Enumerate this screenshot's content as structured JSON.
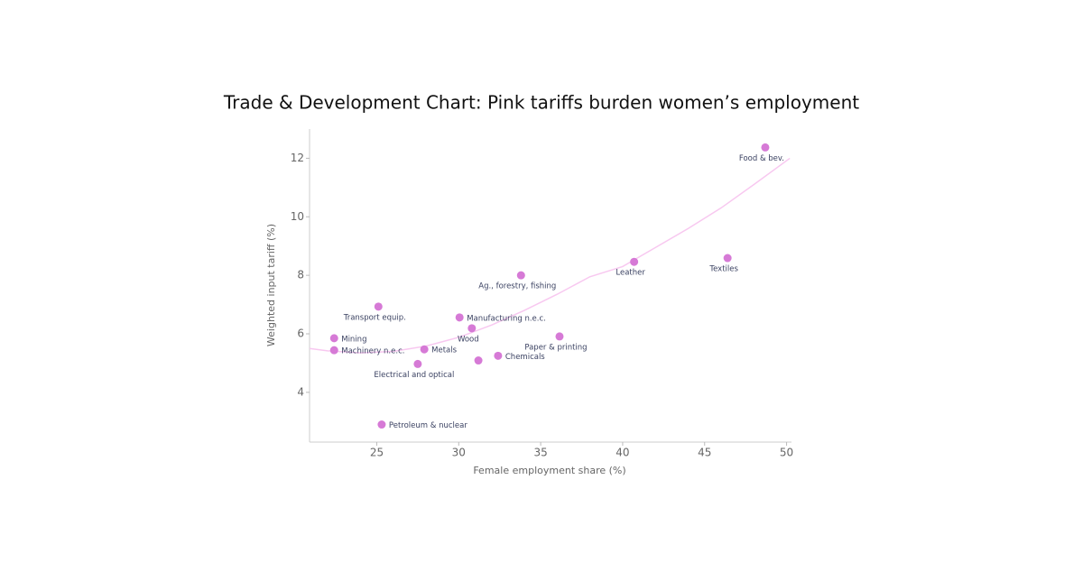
{
  "chart_data": {
    "type": "scatter",
    "title": "Trade & Development Chart: Pink tariffs burden women’s employment",
    "x_label": "Female employment share (%)",
    "y_label": "Weighted input tariff (%)",
    "color": "#d67ad6",
    "labels": [
      "Food & bev.",
      "Textiles",
      "Leather",
      "Ag., forestry, fishing",
      "Transport equip.",
      "Manufacturing n.e.c.",
      "Wood",
      "Paper & printing",
      "Mining",
      "Machinery n.e.c.",
      "Metals",
      "Chemicals",
      null,
      "Electrical and optical",
      "Petroleum & nuclear"
    ],
    "x": [
      48.7,
      46.4,
      40.7,
      33.8,
      25.1,
      30.05,
      30.8,
      36.15,
      22.4,
      22.4,
      27.9,
      32.4,
      31.2,
      27.5,
      25.3
    ],
    "values": [
      12.37,
      8.59,
      8.46,
      8.0,
      6.93,
      6.56,
      6.19,
      5.91,
      5.85,
      5.44,
      5.47,
      5.25,
      5.09,
      4.97,
      2.9
    ],
    "trend": {
      "color": "#f8c8f0",
      "x": [
        20.9,
        22,
        24,
        26,
        28,
        30,
        32,
        34,
        36,
        38,
        40,
        42,
        44,
        46,
        48,
        50.2
      ],
      "values": [
        5.5,
        5.42,
        5.35,
        5.4,
        5.58,
        5.88,
        6.3,
        6.8,
        7.35,
        7.95,
        8.3,
        8.95,
        9.6,
        10.3,
        11.1,
        12.0
      ]
    },
    "xlim": [
      20.9,
      50.3
    ],
    "xticks": [
      25,
      30,
      35,
      40,
      45,
      50
    ],
    "ylim": [
      2.3,
      13
    ],
    "yticks": [
      4,
      6,
      8,
      10,
      12
    ]
  }
}
